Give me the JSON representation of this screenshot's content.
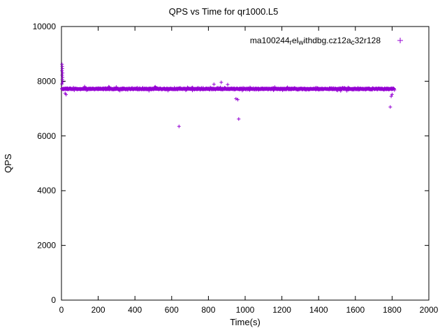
{
  "chart_data": {
    "type": "scatter",
    "title": "QPS vs Time for qr1000.L5",
    "xlabel": "Time(s)",
    "ylabel": "QPS",
    "xlim": [
      0,
      2000
    ],
    "ylim": [
      0,
      10000
    ],
    "x_ticks": [
      0,
      200,
      400,
      600,
      800,
      1000,
      1200,
      1400,
      1600,
      1800,
      2000
    ],
    "y_ticks": [
      0,
      2000,
      4000,
      6000,
      8000,
      10000
    ],
    "grid": false,
    "legend_position": "top-right-inside",
    "background_color": "#ffffff",
    "axis_color": "#000000",
    "series": [
      {
        "name": "ma100244_rel_withdbg.cz12a_c32r128",
        "label_segments": [
          {
            "t": "ma100244"
          },
          {
            "t": "r",
            "sub": true
          },
          {
            "t": "el"
          },
          {
            "t": "w",
            "sub": true
          },
          {
            "t": "ithdbg.cz12a"
          },
          {
            "t": "c",
            "sub": true
          },
          {
            "t": "32r128"
          }
        ],
        "color": "#9400D3",
        "marker": "plus",
        "band": {
          "x_start": 2,
          "x_end": 1812,
          "y_mean": 7720,
          "y_jitter": 65,
          "count": 1500,
          "seed": 42
        },
        "outliers": [
          [
            3,
            8620
          ],
          [
            4,
            8540
          ],
          [
            5,
            8460
          ],
          [
            3,
            8380
          ],
          [
            6,
            8300
          ],
          [
            4,
            8220
          ],
          [
            6,
            8140
          ],
          [
            5,
            8060
          ],
          [
            7,
            7980
          ],
          [
            3,
            7900
          ],
          [
            20,
            7560
          ],
          [
            25,
            7510
          ],
          [
            640,
            6350
          ],
          [
            830,
            7890
          ],
          [
            870,
            7960
          ],
          [
            905,
            7880
          ],
          [
            950,
            7360
          ],
          [
            960,
            7330
          ],
          [
            965,
            6620
          ],
          [
            1790,
            7060
          ],
          [
            1795,
            7450
          ],
          [
            1800,
            7520
          ]
        ]
      }
    ]
  }
}
